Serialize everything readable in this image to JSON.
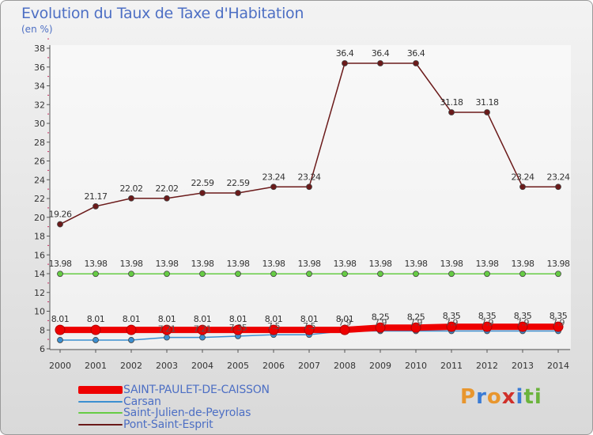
{
  "title": "Evolution du Taux de Taxe d'Habitation",
  "subtitle": "(en %)",
  "logo": {
    "chars": [
      "P",
      "r",
      "o",
      "x",
      "i",
      "t",
      "i"
    ],
    "colors": [
      "#e8962e",
      "#3a7bd5",
      "#e8962e",
      "#d0302a",
      "#3a7bd5",
      "#6bb33c",
      "#6bb33c"
    ]
  },
  "chart_data": {
    "type": "line",
    "title": "Evolution du Taux de Taxe d'Habitation",
    "ylabel": "(en %)",
    "xlabel": "",
    "x": [
      "2000",
      "2001",
      "2002",
      "2003",
      "2004",
      "2005",
      "2006",
      "2007",
      "2008",
      "2009",
      "2010",
      "2011",
      "2012",
      "2013",
      "2014"
    ],
    "ylim": [
      6,
      38
    ],
    "yticks": [
      "6",
      "8",
      "10",
      "12",
      "14",
      "16",
      "18",
      "20",
      "22",
      "24",
      "26",
      "28",
      "30",
      "32",
      "34",
      "36",
      "38"
    ],
    "grid": false,
    "legend": "bottom-left",
    "series": [
      {
        "name": "SAINT-PAULET-DE-CAISSON",
        "color": "#ee0000",
        "values": [
          8.01,
          8.01,
          8.01,
          8.01,
          8.01,
          8.01,
          8.01,
          8.01,
          8.01,
          8.25,
          8.25,
          8.35,
          8.35,
          8.35,
          8.35
        ],
        "labels": [
          "8.01",
          "8.01",
          "8.01",
          "8.01",
          "8.01",
          "8.01",
          "8.01",
          "8.01",
          "8.01",
          "8.25",
          "8.25",
          "8.35",
          "8.35",
          "8.35",
          "8.35"
        ]
      },
      {
        "name": "Carsan",
        "color": "#3b8fd0",
        "values": [
          6.93,
          6.93,
          6.93,
          7.21,
          7.21,
          7.35,
          7.5,
          7.5,
          7.9,
          7.9,
          7.9,
          7.9,
          7.9,
          7.9,
          7.9
        ],
        "labels": [
          "",
          "",
          "",
          "7.21",
          "7.21",
          "7.35",
          "7.5",
          "7.5",
          "7.9",
          "7.9",
          "7.9",
          "7.9",
          "7.9",
          "7.9",
          "7.9"
        ]
      },
      {
        "name": "Saint-Julien-de-Peyrolas",
        "color": "#66cc44",
        "values": [
          13.98,
          13.98,
          13.98,
          13.98,
          13.98,
          13.98,
          13.98,
          13.98,
          13.98,
          13.98,
          13.98,
          13.98,
          13.98,
          13.98,
          13.98
        ],
        "labels": [
          "13.98",
          "13.98",
          "13.98",
          "13.98",
          "13.98",
          "13.98",
          "13.98",
          "13.98",
          "13.98",
          "13.98",
          "13.98",
          "13.98",
          "13.98",
          "13.98",
          "13.98"
        ]
      },
      {
        "name": "Pont-Saint-Esprit",
        "color": "#6b1a1a",
        "values": [
          19.26,
          21.17,
          22.02,
          22.02,
          22.59,
          22.59,
          23.24,
          23.24,
          36.4,
          36.4,
          36.4,
          31.18,
          31.18,
          23.24,
          23.24
        ],
        "labels": [
          "19.26",
          "21.17",
          "22.02",
          "22.02",
          "22.59",
          "22.59",
          "23.24",
          "23.24",
          "36.4",
          "36.4",
          "36.4",
          "31.18",
          "31.18",
          "23.24",
          "23.24"
        ]
      }
    ]
  }
}
